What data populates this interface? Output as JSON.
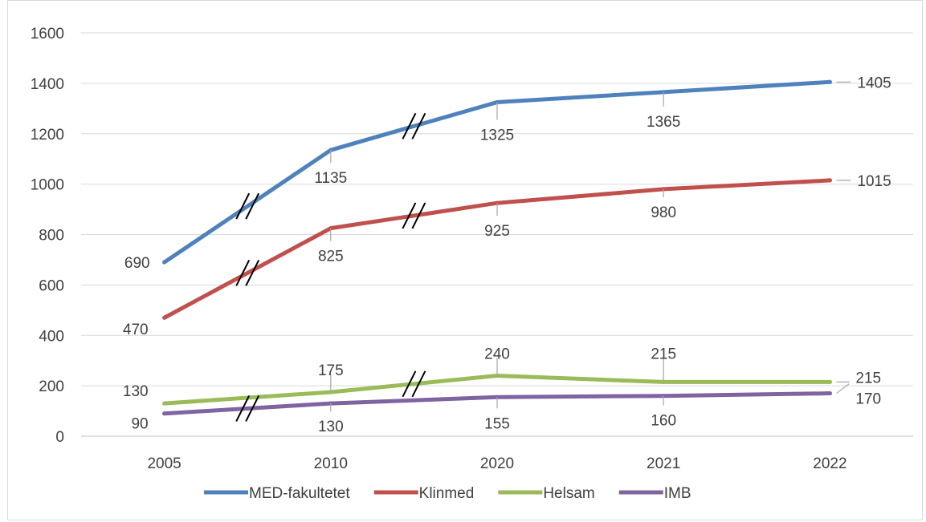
{
  "chart_data": {
    "type": "line",
    "categories": [
      "2005",
      "2010",
      "2020",
      "2021",
      "2022"
    ],
    "ylim": [
      0,
      1600
    ],
    "yticks": [
      0,
      200,
      400,
      600,
      800,
      1000,
      1200,
      1400,
      1600
    ],
    "grid": true,
    "legend_position": "bottom",
    "series": [
      {
        "name": "MED-fakultetet",
        "color": "#4f81bd",
        "values": [
          690,
          1135,
          1325,
          1365,
          1405
        ],
        "labels": [
          "690",
          "1135",
          "1325",
          "1365",
          "1405"
        ]
      },
      {
        "name": "Klinmed",
        "color": "#c0504d",
        "values": [
          470,
          825,
          925,
          980,
          1015
        ],
        "labels": [
          "470",
          "825",
          "925",
          "980",
          "1015"
        ]
      },
      {
        "name": "Helsam",
        "color": "#9bbb59",
        "values": [
          130,
          175,
          240,
          215,
          215
        ],
        "labels": [
          "130",
          "175",
          "240",
          "215",
          "215"
        ]
      },
      {
        "name": "IMB",
        "color": "#8064a2",
        "values": [
          90,
          130,
          155,
          160,
          170
        ],
        "labels": [
          "90",
          "130",
          "155",
          "160",
          "170"
        ]
      }
    ],
    "axis_break_marker": "//"
  }
}
